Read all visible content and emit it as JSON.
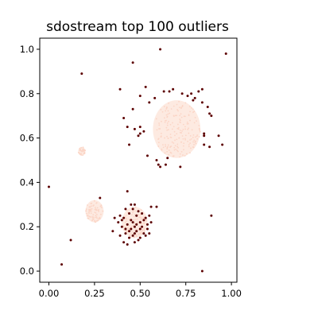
{
  "chart_data": {
    "type": "scatter",
    "title": "sdostream top 100 outliers",
    "xlabel": "",
    "ylabel": "",
    "xlim": [
      -0.05,
      1.03
    ],
    "ylim": [
      -0.05,
      1.05
    ],
    "x_ticks": [
      "0.00",
      "0.25",
      "0.50",
      "0.75",
      "1.00"
    ],
    "y_ticks": [
      "0.0",
      "0.2",
      "0.4",
      "0.6",
      "0.8",
      "1.0"
    ],
    "grid": false,
    "legend": "none",
    "colors": {
      "outlier": "#5c0000",
      "inlier_cloud": "#fde6dc",
      "inlier_dense": "#fbd5c6"
    },
    "inlier_clusters": [
      {
        "cx": 0.7,
        "cy": 0.64,
        "r": 0.13
      },
      {
        "cx": 0.25,
        "cy": 0.27,
        "r": 0.05
      },
      {
        "cx": 0.47,
        "cy": 0.22,
        "r": 0.07
      },
      {
        "cx": 0.18,
        "cy": 0.54,
        "r": 0.02
      }
    ],
    "outliers": [
      [
        0.0,
        0.38
      ],
      [
        0.07,
        0.03
      ],
      [
        0.12,
        0.14
      ],
      [
        0.18,
        0.89
      ],
      [
        0.46,
        0.94
      ],
      [
        0.61,
        1.0
      ],
      [
        0.97,
        0.98
      ],
      [
        0.84,
        0.0
      ],
      [
        0.89,
        0.25
      ],
      [
        0.39,
        0.82
      ],
      [
        0.53,
        0.83
      ],
      [
        0.46,
        0.73
      ],
      [
        0.5,
        0.79
      ],
      [
        0.55,
        0.76
      ],
      [
        0.58,
        0.78
      ],
      [
        0.63,
        0.81
      ],
      [
        0.66,
        0.81
      ],
      [
        0.68,
        0.82
      ],
      [
        0.73,
        0.8
      ],
      [
        0.76,
        0.79
      ],
      [
        0.78,
        0.8
      ],
      [
        0.79,
        0.77
      ],
      [
        0.8,
        0.78
      ],
      [
        0.82,
        0.81
      ],
      [
        0.84,
        0.82
      ],
      [
        0.84,
        0.76
      ],
      [
        0.87,
        0.74
      ],
      [
        0.88,
        0.71
      ],
      [
        0.89,
        0.7
      ],
      [
        0.41,
        0.69
      ],
      [
        0.43,
        0.65
      ],
      [
        0.47,
        0.64
      ],
      [
        0.5,
        0.65
      ],
      [
        0.49,
        0.61
      ],
      [
        0.52,
        0.63
      ],
      [
        0.44,
        0.57
      ],
      [
        0.5,
        0.62
      ],
      [
        0.85,
        0.62
      ],
      [
        0.85,
        0.61
      ],
      [
        0.93,
        0.61
      ],
      [
        0.95,
        0.57
      ],
      [
        0.85,
        0.57
      ],
      [
        0.88,
        0.56
      ],
      [
        0.54,
        0.52
      ],
      [
        0.59,
        0.5
      ],
      [
        0.6,
        0.48
      ],
      [
        0.61,
        0.47
      ],
      [
        0.64,
        0.48
      ],
      [
        0.65,
        0.51
      ],
      [
        0.72,
        0.47
      ],
      [
        0.43,
        0.36
      ],
      [
        0.42,
        0.28
      ],
      [
        0.45,
        0.3
      ],
      [
        0.47,
        0.3
      ],
      [
        0.28,
        0.33
      ],
      [
        0.39,
        0.25
      ],
      [
        0.41,
        0.24
      ],
      [
        0.44,
        0.26
      ],
      [
        0.46,
        0.28
      ],
      [
        0.48,
        0.25
      ],
      [
        0.51,
        0.26
      ],
      [
        0.53,
        0.24
      ],
      [
        0.59,
        0.29
      ],
      [
        0.56,
        0.29
      ],
      [
        0.38,
        0.22
      ],
      [
        0.4,
        0.2
      ],
      [
        0.43,
        0.21
      ],
      [
        0.45,
        0.19
      ],
      [
        0.47,
        0.2
      ],
      [
        0.5,
        0.22
      ],
      [
        0.52,
        0.23
      ],
      [
        0.54,
        0.21
      ],
      [
        0.55,
        0.25
      ],
      [
        0.39,
        0.16
      ],
      [
        0.42,
        0.17
      ],
      [
        0.44,
        0.15
      ],
      [
        0.46,
        0.16
      ],
      [
        0.48,
        0.18
      ],
      [
        0.5,
        0.15
      ],
      [
        0.52,
        0.17
      ],
      [
        0.55,
        0.17
      ],
      [
        0.43,
        0.12
      ],
      [
        0.47,
        0.13
      ],
      [
        0.49,
        0.14
      ],
      [
        0.41,
        0.13
      ],
      [
        0.53,
        0.16
      ],
      [
        0.36,
        0.24
      ],
      [
        0.35,
        0.18
      ],
      [
        0.45,
        0.23
      ],
      [
        0.5,
        0.19
      ],
      [
        0.56,
        0.22
      ],
      [
        0.42,
        0.19
      ],
      [
        0.48,
        0.21
      ],
      [
        0.44,
        0.18
      ],
      [
        0.46,
        0.22
      ],
      [
        0.51,
        0.2
      ],
      [
        0.4,
        0.23
      ],
      [
        0.49,
        0.27
      ],
      [
        0.54,
        0.19
      ],
      [
        0.47,
        0.17
      ]
    ]
  }
}
